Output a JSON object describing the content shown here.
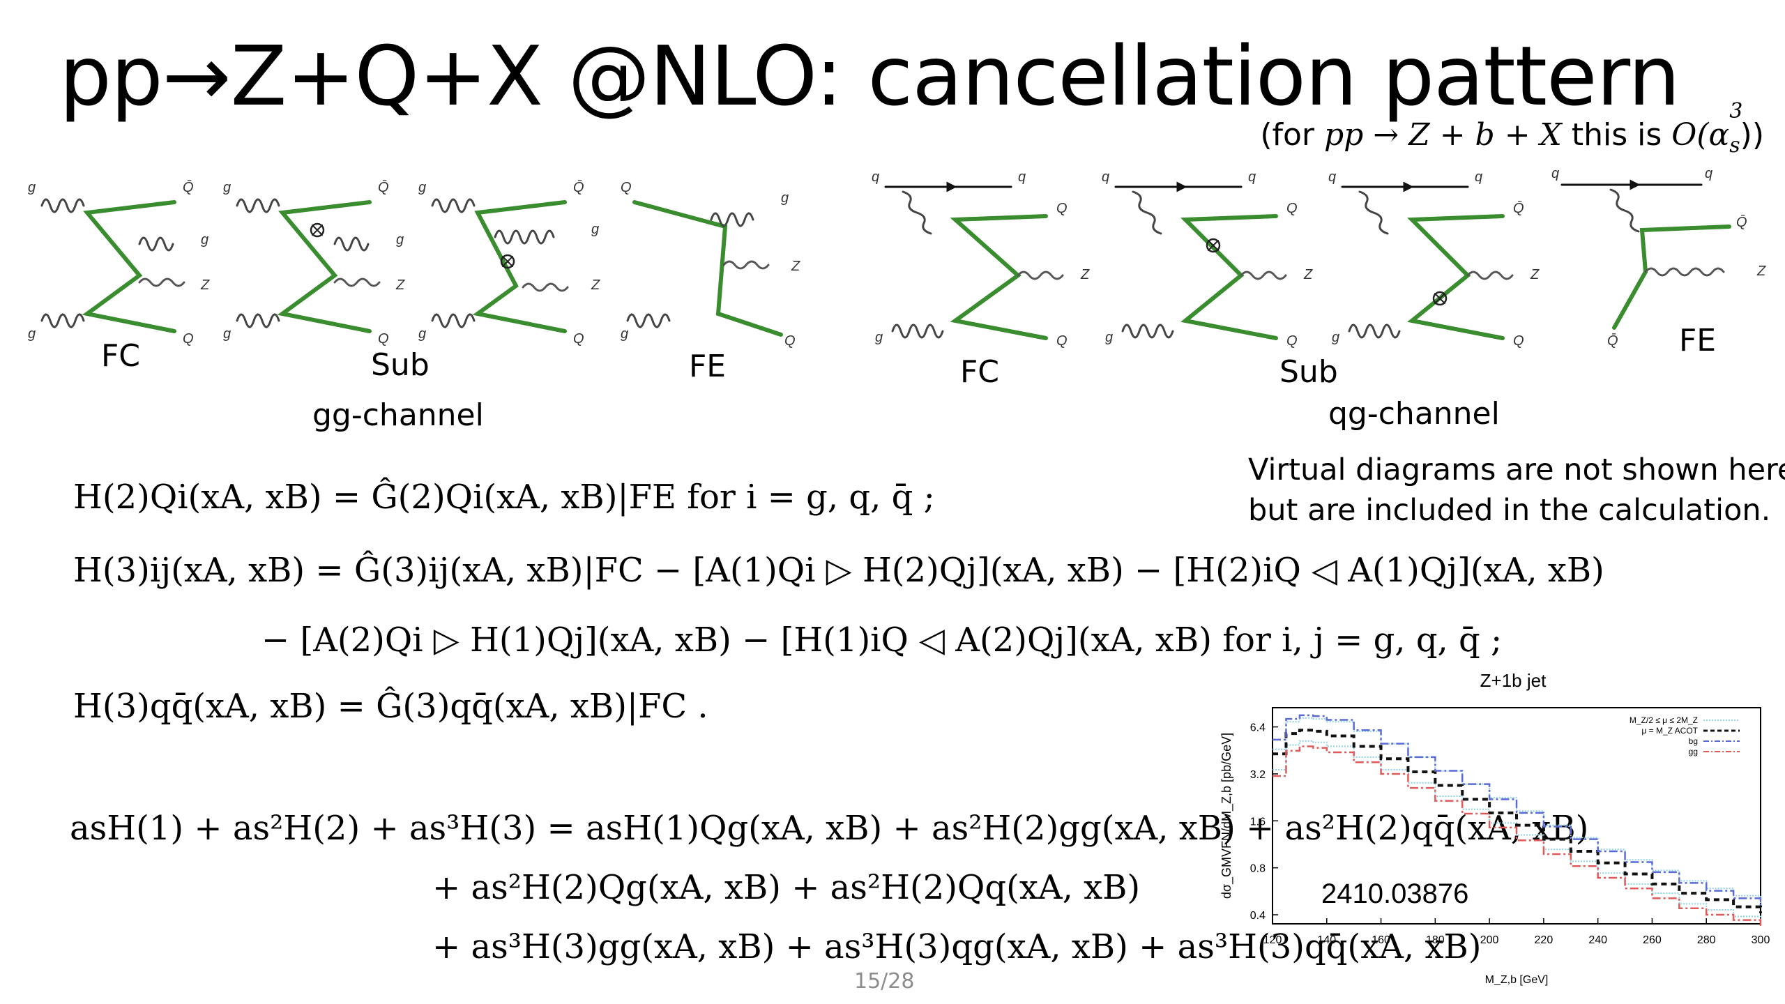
{
  "slide": {
    "title": "pp→Z+Q+X @NLO: cancellation pattern",
    "subtitle_prefix": "(for ",
    "subtitle_process": "pp → Z + b + X",
    "subtitle_mid": " this is ",
    "subtitle_order": "O(α",
    "subtitle_order_sup": "3",
    "subtitle_order_sub": "s",
    "subtitle_suffix": "))",
    "page_number": "15/28"
  },
  "gg_channel": {
    "label": "gg-channel",
    "diagrams": [
      {
        "label": "FC"
      },
      {
        "label": "Sub"
      },
      {
        "label": "FE"
      }
    ]
  },
  "qg_channel": {
    "label": "qg-channel",
    "diagrams": [
      {
        "label": "FC"
      },
      {
        "label": "Sub"
      },
      {
        "label": "FE"
      }
    ]
  },
  "particles": {
    "g": "g",
    "q": "q",
    "Q": "Q",
    "Qbar": "Q̄",
    "Z": "Z"
  },
  "note": {
    "line1": "Virtual diagrams are not shown here,",
    "line2": "but are included in the calculation."
  },
  "equations": {
    "subtractions": [
      "H(2)Qi(xA, xB) = Ĝ(2)Qi(xA, xB)|FE   for i = g, q, q̄ ;",
      "H(3)ij(xA, xB) = Ĝ(3)ij(xA, xB)|FC − [A(1)Qi ▷ H(2)Qj](xA, xB) − [H(2)iQ ◁ A(1)Qj](xA, xB)",
      "− [A(2)Qi ▷ H(1)Qj](xA, xB) − [H(1)iQ ◁ A(2)Qj](xA, xB)   for i, j = g, q, q̄ ;",
      "H(3)qq̄(xA, xB) = Ĝ(3)qq̄(xA, xB)|FC ."
    ],
    "expansion": [
      "asH(1) + as²H(2) + as³H(3) = asH(1)Qg(xA, xB) + as²H(2)gg(xA, xB) + as²H(2)qq̄(xA, xB)",
      "+ as²H(2)Qg(xA, xB) + as²H(2)Qq(xA, xB)",
      "+ as³H(3)gg(xA, xB) + as³H(3)qg(xA, xB) + as³H(3)qq̄(xA, xB)"
    ]
  },
  "colors": {
    "fermion_line": "#3a8d2f",
    "photon_line": "#555555",
    "gluon_line": "#444444",
    "acot": "#111111",
    "bg": "#5a6bd6",
    "gg": "#e05a5a",
    "band": "#8fd0e6"
  },
  "chart_data": {
    "type": "line",
    "title": "Z+1b jet",
    "xlabel": "M_Z,b  [GeV]",
    "ylabel": "dσ_GMVFN/dM_Z,b [pb/GeV]",
    "xlim": [
      120,
      300
    ],
    "ylim": [
      0.35,
      8.5
    ],
    "log_y": true,
    "x_ticks": [
      "120",
      "140",
      "160",
      "180",
      "200",
      "220",
      "240",
      "260",
      "280",
      "300"
    ],
    "y_ticks": [
      "0.4",
      "0.8",
      "1.6",
      "3.2",
      "6.4"
    ],
    "annotation": "2410.03876",
    "legend_position": "top-right",
    "series": [
      {
        "name": "M_Z/2 ≤ μ ≤ 2M_Z",
        "style": "band",
        "x": [
          120,
          125,
          130,
          135,
          140,
          150,
          160,
          170,
          180,
          190,
          200,
          210,
          220,
          230,
          240,
          250,
          260,
          270,
          280,
          290,
          300
        ],
        "low": [
          3.4,
          4.9,
          5.2,
          5.1,
          4.8,
          4.1,
          3.4,
          2.8,
          2.3,
          1.9,
          1.55,
          1.3,
          1.05,
          0.88,
          0.74,
          0.63,
          0.55,
          0.47,
          0.43,
          0.39,
          0.35
        ],
        "high": [
          4.6,
          6.9,
          7.3,
          7.2,
          6.9,
          6.0,
          5.0,
          4.1,
          3.35,
          2.75,
          2.25,
          1.85,
          1.5,
          1.25,
          1.05,
          0.9,
          0.77,
          0.66,
          0.59,
          0.53,
          0.47
        ]
      },
      {
        "name": "μ = M_Z  ACOT",
        "style": "dashed-black",
        "x": [
          120,
          125,
          130,
          135,
          140,
          150,
          160,
          170,
          180,
          190,
          200,
          210,
          220,
          230,
          240,
          250,
          260,
          270,
          280,
          290,
          300
        ],
        "y": [
          4.3,
          5.8,
          6.1,
          6.0,
          5.6,
          4.8,
          4.0,
          3.3,
          2.7,
          2.2,
          1.8,
          1.5,
          1.22,
          1.02,
          0.86,
          0.73,
          0.63,
          0.55,
          0.5,
          0.45,
          0.41
        ]
      },
      {
        "name": "bg",
        "style": "dashdot-blue",
        "x": [
          120,
          125,
          130,
          135,
          140,
          150,
          160,
          170,
          180,
          190,
          200,
          210,
          220,
          230,
          240,
          250,
          260,
          270,
          280,
          290,
          300
        ],
        "y": [
          5.3,
          7.2,
          7.6,
          7.5,
          7.1,
          6.1,
          5.0,
          4.1,
          3.35,
          2.75,
          2.2,
          1.8,
          1.47,
          1.22,
          1.02,
          0.87,
          0.75,
          0.64,
          0.57,
          0.51,
          0.46
        ]
      },
      {
        "name": "gg",
        "style": "dashdot-red",
        "x": [
          120,
          125,
          130,
          135,
          140,
          150,
          160,
          170,
          180,
          190,
          200,
          210,
          220,
          230,
          240,
          250,
          260,
          270,
          280,
          290,
          300
        ],
        "y": [
          3.1,
          4.5,
          4.8,
          4.7,
          4.4,
          3.8,
          3.2,
          2.6,
          2.15,
          1.78,
          1.45,
          1.2,
          0.98,
          0.82,
          0.69,
          0.59,
          0.51,
          0.44,
          0.4,
          0.37,
          0.34
        ]
      }
    ]
  }
}
